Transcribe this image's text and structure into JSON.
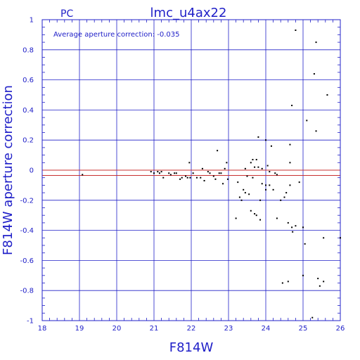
{
  "colors": {
    "axis": "#2020c8",
    "grid": "#2020c8",
    "reference_line": "#c83030",
    "points": "#000000"
  },
  "chart_data": {
    "type": "scatter",
    "title": "lmc_u4ax22",
    "camera_label": "PC",
    "annotation": "Average aperture correction: -0.035",
    "xlabel": "F814W",
    "ylabel": "F814W aperture correction",
    "xlim": [
      18,
      26
    ],
    "ylim": [
      -1,
      1
    ],
    "x_ticks": [
      18,
      19,
      20,
      21,
      22,
      23,
      24,
      25,
      26
    ],
    "y_ticks": [
      -1,
      -0.8,
      -0.6,
      -0.4,
      -0.2,
      0,
      0.2,
      0.4,
      0.6,
      0.8,
      1
    ],
    "x_tick_labels": [
      "18",
      "19",
      "20",
      "21",
      "22",
      "23",
      "24",
      "25",
      "26"
    ],
    "y_tick_labels": [
      "-1",
      "-0.8",
      "-0.6",
      "-0.4",
      "-0.2",
      "0",
      "0.2",
      "0.4",
      "0.6",
      "0.8",
      "1"
    ],
    "grid": true,
    "reference_lines": [
      0,
      -0.035
    ],
    "points": [
      [
        19.08,
        -0.03
      ],
      [
        20.92,
        -0.01
      ],
      [
        21.0,
        -0.02
      ],
      [
        21.1,
        -0.01
      ],
      [
        21.15,
        -0.02
      ],
      [
        21.2,
        -0.01
      ],
      [
        21.25,
        -0.05
      ],
      [
        21.4,
        -0.02
      ],
      [
        21.45,
        -0.03
      ],
      [
        21.55,
        -0.02
      ],
      [
        21.6,
        -0.02
      ],
      [
        21.7,
        -0.06
      ],
      [
        21.75,
        -0.05
      ],
      [
        21.85,
        -0.04
      ],
      [
        21.9,
        -0.05
      ],
      [
        21.95,
        0.05
      ],
      [
        21.97,
        -0.05
      ],
      [
        22.05,
        -0.02
      ],
      [
        22.15,
        -0.05
      ],
      [
        22.25,
        -0.05
      ],
      [
        22.3,
        0.01
      ],
      [
        22.35,
        -0.07
      ],
      [
        22.45,
        -0.01
      ],
      [
        22.5,
        -0.02
      ],
      [
        22.6,
        -0.04
      ],
      [
        22.65,
        -0.06
      ],
      [
        22.7,
        0.13
      ],
      [
        22.75,
        -0.02
      ],
      [
        22.8,
        -0.02
      ],
      [
        22.85,
        -0.09
      ],
      [
        22.9,
        0.01
      ],
      [
        22.95,
        0.05
      ],
      [
        22.98,
        -0.06
      ],
      [
        23.2,
        -0.32
      ],
      [
        23.25,
        -0.08
      ],
      [
        23.3,
        -0.18
      ],
      [
        23.35,
        -0.2
      ],
      [
        23.4,
        -0.13
      ],
      [
        23.45,
        -0.15
      ],
      [
        23.45,
        0.01
      ],
      [
        23.5,
        -0.04
      ],
      [
        23.55,
        -0.16
      ],
      [
        23.6,
        0.05
      ],
      [
        23.6,
        -0.27
      ],
      [
        23.65,
        0.07
      ],
      [
        23.65,
        -0.05
      ],
      [
        23.7,
        0.02
      ],
      [
        23.7,
        -0.29
      ],
      [
        23.75,
        -0.3
      ],
      [
        23.75,
        0.07
      ],
      [
        23.8,
        0.02
      ],
      [
        23.8,
        0.22
      ],
      [
        23.85,
        -0.2
      ],
      [
        23.85,
        -0.33
      ],
      [
        23.9,
        0.01
      ],
      [
        23.9,
        -0.09
      ],
      [
        24.0,
        0.2
      ],
      [
        24.0,
        -0.1
      ],
      [
        24.0,
        -0.13
      ],
      [
        24.05,
        0.03
      ],
      [
        24.1,
        -0.01
      ],
      [
        24.1,
        -0.1
      ],
      [
        24.15,
        0.16
      ],
      [
        24.2,
        -0.13
      ],
      [
        24.25,
        -0.02
      ],
      [
        24.3,
        -0.32
      ],
      [
        24.3,
        -0.03
      ],
      [
        24.4,
        -0.2
      ],
      [
        24.45,
        -0.75
      ],
      [
        24.5,
        -0.18
      ],
      [
        24.55,
        -0.15
      ],
      [
        24.6,
        -0.74
      ],
      [
        24.6,
        -0.35
      ],
      [
        24.65,
        0.17
      ],
      [
        24.65,
        0.05
      ],
      [
        24.65,
        -0.1
      ],
      [
        24.7,
        0.43
      ],
      [
        24.7,
        -0.38
      ],
      [
        24.72,
        -0.41
      ],
      [
        24.8,
        0.93
      ],
      [
        24.8,
        -0.37
      ],
      [
        24.9,
        -0.08
      ],
      [
        25.0,
        -0.7
      ],
      [
        25.0,
        -0.38
      ],
      [
        25.05,
        -0.49
      ],
      [
        25.1,
        0.33
      ],
      [
        25.25,
        -0.98
      ],
      [
        25.3,
        0.64
      ],
      [
        25.35,
        0.85
      ],
      [
        25.35,
        0.26
      ],
      [
        25.4,
        -0.72
      ],
      [
        25.45,
        -0.77
      ],
      [
        25.55,
        -0.74
      ],
      [
        25.55,
        -0.45
      ],
      [
        25.65,
        0.5
      ],
      [
        26.0,
        -0.45
      ]
    ]
  }
}
